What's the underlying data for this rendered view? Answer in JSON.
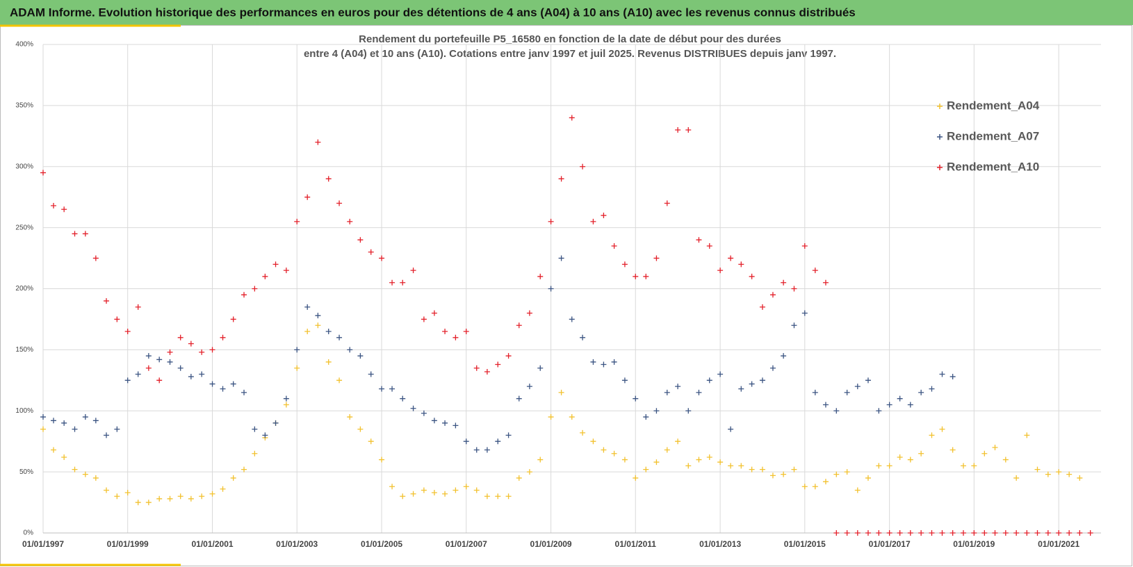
{
  "header": {
    "title": "ADAM Informe. Evolution historique des performances en euros pour des détentions de 4 ans (A04) à 10 ans (A10) avec les revenus connus distribués"
  },
  "chart_data": {
    "type": "scatter",
    "title": "Rendement du portefeuille P5_16580 en fonction de la date de début pour des durées",
    "subtitle": "entre 4 (A04) et 10 ans (A10). Cotations  entre janv 1997 et juil 2025. Revenus DISTRIBUES depuis janv 1997.",
    "x": [
      "01/01/1997",
      "01/04/1997",
      "01/07/1997",
      "01/10/1997",
      "01/01/1998",
      "01/04/1998",
      "01/07/1998",
      "01/10/1998",
      "01/01/1999",
      "01/04/1999",
      "01/07/1999",
      "01/10/1999",
      "01/01/2000",
      "01/04/2000",
      "01/07/2000",
      "01/10/2000",
      "01/01/2001",
      "01/04/2001",
      "01/07/2001",
      "01/10/2001",
      "01/01/2002",
      "01/04/2002",
      "01/07/2002",
      "01/10/2002",
      "01/01/2003",
      "01/04/2003",
      "01/07/2003",
      "01/10/2003",
      "01/01/2004",
      "01/04/2004",
      "01/07/2004",
      "01/10/2004",
      "01/01/2005",
      "01/04/2005",
      "01/07/2005",
      "01/10/2005",
      "01/01/2006",
      "01/04/2006",
      "01/07/2006",
      "01/10/2006",
      "01/01/2007",
      "01/04/2007",
      "01/07/2007",
      "01/10/2007",
      "01/01/2008",
      "01/04/2008",
      "01/07/2008",
      "01/10/2008",
      "01/01/2009",
      "01/04/2009",
      "01/07/2009",
      "01/10/2009",
      "01/01/2010",
      "01/04/2010",
      "01/07/2010",
      "01/10/2010",
      "01/01/2011",
      "01/04/2011",
      "01/07/2011",
      "01/10/2011",
      "01/01/2012",
      "01/04/2012",
      "01/07/2012",
      "01/10/2012",
      "01/01/2013",
      "01/04/2013",
      "01/07/2013",
      "01/10/2013",
      "01/01/2014",
      "01/04/2014",
      "01/07/2014",
      "01/10/2014",
      "01/01/2015",
      "01/04/2015",
      "01/07/2015",
      "01/10/2015",
      "01/01/2016",
      "01/04/2016",
      "01/07/2016",
      "01/10/2016",
      "01/01/2017",
      "01/04/2017",
      "01/07/2017",
      "01/10/2017",
      "01/01/2018",
      "01/04/2018",
      "01/07/2018",
      "01/10/2018",
      "01/01/2019",
      "01/04/2019",
      "01/07/2019",
      "01/10/2019",
      "01/01/2020",
      "01/04/2020",
      "01/07/2020",
      "01/10/2020",
      "01/01/2021",
      "01/04/2021",
      "01/07/2021",
      "01/10/2021"
    ],
    "series": [
      {
        "name": "Rendement_A04",
        "color": "#f2c12e",
        "values": [
          85,
          68,
          62,
          52,
          48,
          45,
          35,
          30,
          33,
          25,
          25,
          28,
          28,
          30,
          28,
          30,
          32,
          36,
          45,
          52,
          65,
          78,
          90,
          105,
          135,
          165,
          170,
          140,
          125,
          95,
          85,
          75,
          60,
          38,
          30,
          32,
          35,
          33,
          32,
          35,
          38,
          35,
          30,
          30,
          30,
          45,
          50,
          60,
          95,
          115,
          95,
          82,
          75,
          68,
          65,
          60,
          45,
          52,
          58,
          68,
          75,
          55,
          60,
          62,
          58,
          55,
          55,
          52,
          52,
          47,
          48,
          52,
          38,
          38,
          42,
          48,
          50,
          35,
          45,
          55,
          55,
          62,
          60,
          65,
          80,
          85,
          68,
          55,
          55,
          65,
          70,
          60,
          45,
          80,
          52,
          48,
          50,
          48,
          45,
          null
        ]
      },
      {
        "name": "Rendement_A07",
        "color": "#3b5482",
        "values": [
          95,
          92,
          90,
          85,
          95,
          92,
          80,
          85,
          125,
          130,
          145,
          142,
          140,
          135,
          128,
          130,
          122,
          118,
          122,
          115,
          85,
          80,
          90,
          110,
          150,
          185,
          178,
          165,
          160,
          150,
          145,
          130,
          118,
          118,
          110,
          102,
          98,
          92,
          90,
          88,
          75,
          68,
          68,
          75,
          80,
          110,
          120,
          135,
          200,
          225,
          175,
          160,
          140,
          138,
          140,
          125,
          110,
          95,
          100,
          115,
          120,
          100,
          115,
          125,
          130,
          85,
          118,
          122,
          125,
          135,
          145,
          170,
          180,
          115,
          105,
          100,
          115,
          120,
          125,
          100,
          105,
          110,
          105,
          115,
          118,
          130,
          128,
          null,
          null,
          null,
          null,
          null,
          null,
          null,
          null,
          null,
          null,
          null,
          null,
          null
        ]
      },
      {
        "name": "Rendement_A10",
        "color": "#e3202a",
        "values": [
          295,
          268,
          265,
          245,
          245,
          225,
          190,
          175,
          165,
          185,
          135,
          125,
          148,
          160,
          155,
          148,
          150,
          160,
          175,
          195,
          200,
          210,
          220,
          215,
          255,
          275,
          320,
          290,
          270,
          255,
          240,
          230,
          225,
          205,
          205,
          215,
          175,
          180,
          165,
          160,
          165,
          135,
          132,
          138,
          145,
          170,
          180,
          210,
          255,
          290,
          340,
          300,
          255,
          260,
          235,
          220,
          210,
          210,
          225,
          270,
          330,
          330,
          240,
          235,
          215,
          225,
          220,
          210,
          185,
          195,
          205,
          200,
          235,
          215,
          205,
          0,
          0,
          0,
          0,
          0,
          0,
          0,
          0,
          0,
          0,
          0,
          0,
          0,
          0,
          0,
          0,
          0,
          0,
          0,
          0,
          0,
          0,
          0,
          0,
          0
        ]
      }
    ],
    "xlim": [
      "01/01/1997",
      "01/01/2022"
    ],
    "xticks": [
      "01/01/1997",
      "01/01/1999",
      "01/01/2001",
      "01/01/2003",
      "01/01/2005",
      "01/01/2007",
      "01/01/2009",
      "01/01/2011",
      "01/01/2013",
      "01/01/2015",
      "01/01/2017",
      "01/01/2019",
      "01/01/2021"
    ],
    "ylim": [
      0,
      400
    ],
    "yticks": [
      {
        "value": 0,
        "label": "0%"
      },
      {
        "value": 50,
        "label": "50%"
      },
      {
        "value": 100,
        "label": "100%"
      },
      {
        "value": 150,
        "label": "150%"
      },
      {
        "value": 200,
        "label": "200%"
      },
      {
        "value": 250,
        "label": "250%"
      },
      {
        "value": 300,
        "label": "300%"
      },
      {
        "value": 350,
        "label": "350%"
      },
      {
        "value": 400,
        "label": "400%"
      }
    ],
    "grid": true,
    "legend": "right"
  }
}
